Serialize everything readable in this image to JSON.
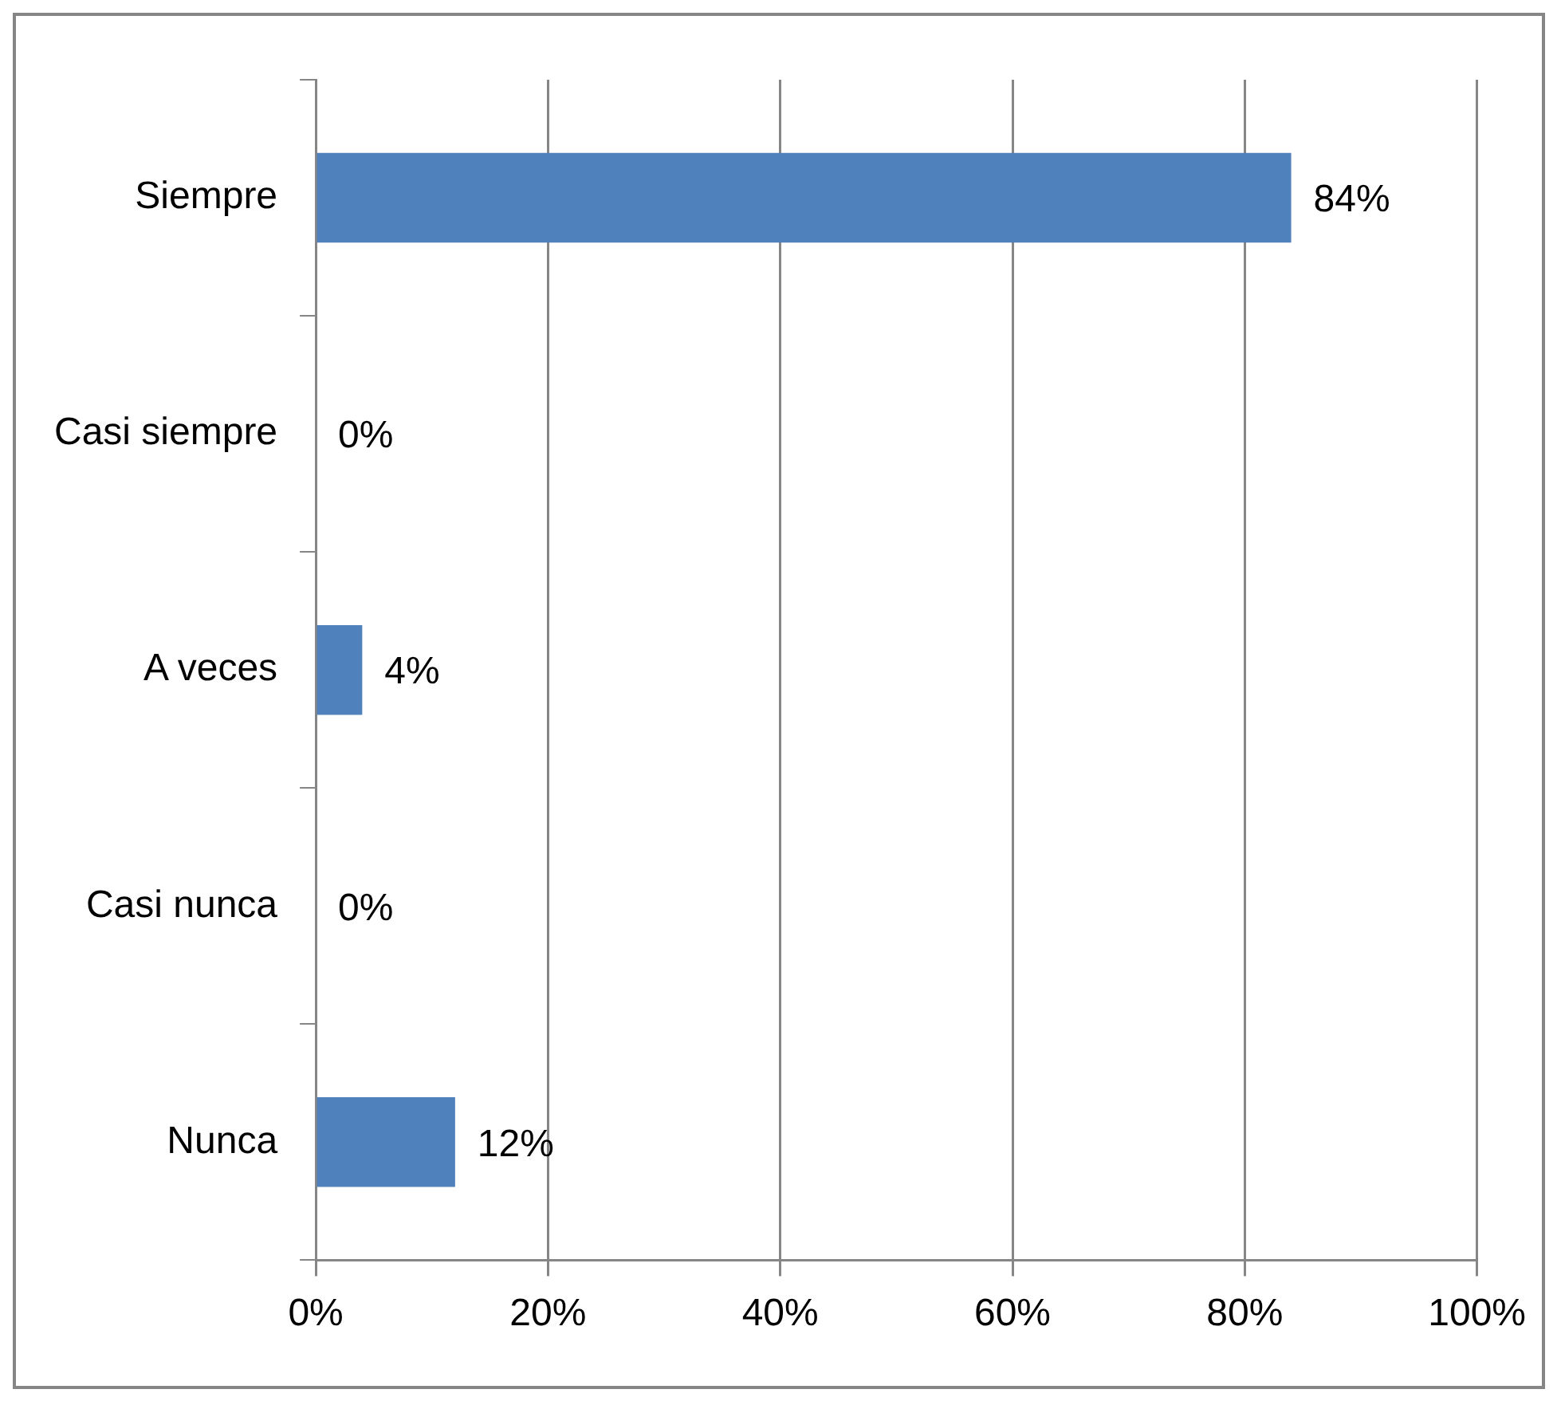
{
  "chart_data": {
    "type": "bar",
    "orientation": "horizontal",
    "categories": [
      "Siempre",
      "Casi siempre",
      "A veces",
      "Casi nunca",
      "Nunca"
    ],
    "values": [
      84,
      0,
      4,
      0,
      12
    ],
    "value_labels": [
      "84%",
      "0%",
      "4%",
      "0%",
      "12%"
    ],
    "color": "#4f81bd",
    "xlim": [
      0,
      100
    ],
    "xticks": [
      {
        "value": 0,
        "label": "0%"
      },
      {
        "value": 20,
        "label": "20%"
      },
      {
        "value": 40,
        "label": "40%"
      },
      {
        "value": 60,
        "label": "60%"
      },
      {
        "value": 80,
        "label": "80%"
      },
      {
        "value": 100,
        "label": "100%"
      }
    ],
    "grid": "x",
    "legend": false
  }
}
